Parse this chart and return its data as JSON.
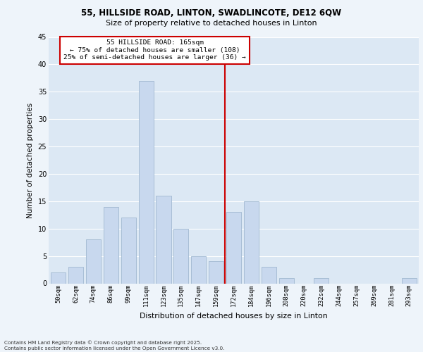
{
  "title1": "55, HILLSIDE ROAD, LINTON, SWADLINCOTE, DE12 6QW",
  "title2": "Size of property relative to detached houses in Linton",
  "xlabel": "Distribution of detached houses by size in Linton",
  "ylabel": "Number of detached properties",
  "categories": [
    "50sqm",
    "62sqm",
    "74sqm",
    "86sqm",
    "99sqm",
    "111sqm",
    "123sqm",
    "135sqm",
    "147sqm",
    "159sqm",
    "172sqm",
    "184sqm",
    "196sqm",
    "208sqm",
    "220sqm",
    "232sqm",
    "244sqm",
    "257sqm",
    "269sqm",
    "281sqm",
    "293sqm"
  ],
  "values": [
    2,
    3,
    8,
    14,
    12,
    37,
    16,
    10,
    5,
    4,
    13,
    15,
    3,
    1,
    0,
    1,
    0,
    0,
    0,
    0,
    1
  ],
  "bar_color": "#c8d8ee",
  "bar_edge_color": "#a0b8d0",
  "ref_line_x": 9.5,
  "annotation_line1": "55 HILLSIDE ROAD: 165sqm",
  "annotation_line2": "← 75% of detached houses are smaller (108)",
  "annotation_line3": "25% of semi-detached houses are larger (36) →",
  "annotation_box_color": "#ffffff",
  "annotation_box_edge_color": "#cc0000",
  "ref_line_color": "#cc0000",
  "plot_bg_color": "#dce8f4",
  "fig_bg_color": "#eef4fa",
  "grid_color": "#ffffff",
  "footnote": "Contains HM Land Registry data © Crown copyright and database right 2025.\nContains public sector information licensed under the Open Government Licence v3.0.",
  "ylim": [
    0,
    45
  ],
  "yticks": [
    0,
    5,
    10,
    15,
    20,
    25,
    30,
    35,
    40,
    45
  ]
}
